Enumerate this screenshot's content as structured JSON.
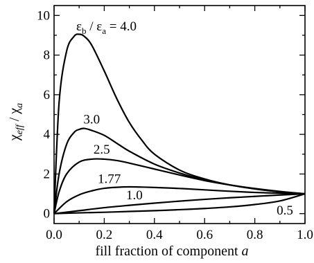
{
  "chart_data": {
    "type": "line",
    "xlabel_main": "fill fraction of component ",
    "xlabel_italic": "a",
    "ylabel_chi1": "χ",
    "ylabel_sub1": "eff",
    "ylabel_slash": " / ",
    "ylabel_chi2": "χ",
    "ylabel_sub2": "a",
    "xlim": [
      0,
      1
    ],
    "ylim": [
      -0.5,
      10.5
    ],
    "xticks": [
      0.0,
      0.2,
      0.4,
      0.6,
      0.8,
      1.0
    ],
    "xtick_labels": [
      "0.0",
      "0.2",
      "0.4",
      "0.6",
      "0.8",
      "1.0"
    ],
    "yticks": [
      0,
      2,
      4,
      6,
      8,
      10
    ],
    "ytick_labels": [
      "0",
      "2",
      "4",
      "6",
      "8",
      "10"
    ],
    "grid": false,
    "header_label": {
      "eps_b": "ε",
      "sub_b": "b",
      "slash": " / ",
      "eps_a": "ε",
      "sub_a": "a",
      "value": " = 4.0"
    },
    "series": [
      {
        "label": "",
        "x": [
          0,
          0.02,
          0.05,
          0.08,
          0.1,
          0.12,
          0.15,
          0.2,
          0.25,
          0.3,
          0.35,
          0.4,
          0.5,
          0.6,
          0.7,
          0.8,
          0.9,
          1.0
        ],
        "y": [
          0,
          5.6,
          8.2,
          8.95,
          9.05,
          8.95,
          8.5,
          7.2,
          5.8,
          4.6,
          3.7,
          3.0,
          2.2,
          1.75,
          1.45,
          1.25,
          1.1,
          1.0
        ]
      },
      {
        "label": "3.0",
        "x": [
          0,
          0.02,
          0.05,
          0.08,
          0.1,
          0.12,
          0.15,
          0.2,
          0.25,
          0.3,
          0.4,
          0.5,
          0.6,
          0.7,
          0.8,
          0.9,
          1.0
        ],
        "y": [
          0,
          2.0,
          3.5,
          4.1,
          4.25,
          4.3,
          4.2,
          3.95,
          3.55,
          3.15,
          2.5,
          2.05,
          1.7,
          1.45,
          1.25,
          1.1,
          1.0
        ]
      },
      {
        "label": "2.5",
        "x": [
          0,
          0.02,
          0.05,
          0.1,
          0.15,
          0.2,
          0.25,
          0.3,
          0.4,
          0.5,
          0.6,
          0.7,
          0.8,
          0.9,
          1.0
        ],
        "y": [
          0,
          1.1,
          2.0,
          2.6,
          2.75,
          2.75,
          2.68,
          2.55,
          2.25,
          1.95,
          1.67,
          1.45,
          1.27,
          1.12,
          1.0
        ]
      },
      {
        "label": "1.77",
        "x": [
          0,
          0.05,
          0.1,
          0.15,
          0.2,
          0.25,
          0.3,
          0.35,
          0.4,
          0.5,
          0.6,
          0.7,
          0.8,
          0.9,
          1.0
        ],
        "y": [
          0,
          0.6,
          0.95,
          1.15,
          1.28,
          1.33,
          1.35,
          1.34,
          1.32,
          1.27,
          1.2,
          1.13,
          1.07,
          1.03,
          1.0
        ]
      },
      {
        "label": "1.0",
        "x": [
          0,
          0.1,
          0.2,
          0.3,
          0.4,
          0.5,
          0.6,
          0.7,
          0.8,
          0.9,
          1.0
        ],
        "y": [
          0,
          0.15,
          0.3,
          0.42,
          0.53,
          0.63,
          0.72,
          0.8,
          0.87,
          0.94,
          1.0
        ]
      },
      {
        "label": "0.5",
        "x": [
          0,
          0.1,
          0.2,
          0.3,
          0.4,
          0.5,
          0.6,
          0.7,
          0.8,
          0.9,
          1.0
        ],
        "y": [
          0,
          0.04,
          0.07,
          0.11,
          0.15,
          0.2,
          0.26,
          0.34,
          0.46,
          0.64,
          1.0
        ]
      }
    ]
  }
}
